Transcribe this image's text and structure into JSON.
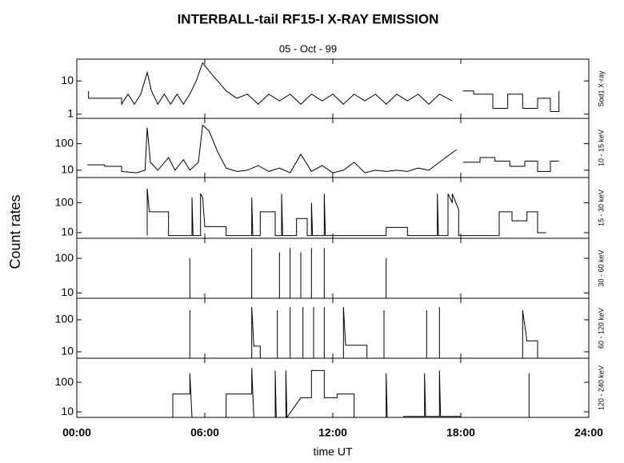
{
  "chart_data": {
    "type": "line",
    "log": true,
    "color": "#000000",
    "title": "INTERBALL-tail  RF15-I   X-RAY  EMISSION",
    "subtitle": "05 - Oct - 99",
    "x_label": "time UT",
    "y_label": "Count  rates",
    "xlim": [
      0,
      24
    ],
    "xticks": [
      {
        "value": 0,
        "label": "00:00"
      },
      {
        "value": 6,
        "label": "06:00"
      },
      {
        "value": 12,
        "label": "12:00"
      },
      {
        "value": 18,
        "label": "18:00"
      },
      {
        "value": 24,
        "label": "24:00"
      }
    ],
    "panels": [
      {
        "label": "Sod1 X-ray",
        "ylim": [
          0.75,
          45
        ],
        "yticks": [
          1,
          10
        ],
        "x": [
          0.55,
          0.55,
          2.1,
          2.1,
          2.4,
          2.7,
          3.0,
          3.3,
          3.5,
          3.8,
          4.1,
          4.4,
          4.7,
          5.0,
          5.3,
          5.6,
          5.9,
          6.2,
          6.6,
          7.0,
          7.5,
          8.0,
          8.5,
          9.0,
          9.5,
          10.0,
          10.5,
          11.0,
          11.5,
          12.0,
          12.5,
          13.0,
          13.5,
          14.0,
          14.5,
          15.0,
          15.5,
          16.0,
          16.5,
          17.0,
          17.6,
          17.8,
          18.1,
          18.6,
          18.6,
          19.5,
          19.5,
          20.2,
          20.2,
          20.9,
          20.9,
          21.6,
          21.6,
          22.2,
          22.2,
          22.6,
          22.6
        ],
        "values": [
          5,
          3,
          3,
          2,
          4,
          2,
          4,
          18,
          5,
          2,
          4,
          2,
          4,
          2,
          4,
          10,
          35,
          20,
          10,
          5,
          3,
          4,
          2,
          4,
          2.5,
          4,
          2,
          4,
          2.5,
          4,
          2,
          4,
          2.5,
          4,
          2,
          4,
          2.5,
          4,
          2,
          4,
          2.5,
          null,
          5,
          5,
          4,
          4,
          1.5,
          1.5,
          4,
          4,
          1.5,
          1.5,
          3,
          3,
          1.2,
          1.2,
          5
        ]
      },
      {
        "label": "10 - 15 keV",
        "ylim": [
          5.3,
          900
        ],
        "yticks": [
          10,
          100
        ],
        "x": [
          0.5,
          1.3,
          1.3,
          2.1,
          2.1,
          2.8,
          3.2,
          3.3,
          3.45,
          3.8,
          4.3,
          4.6,
          5.0,
          5.3,
          5.7,
          5.9,
          6.2,
          6.6,
          7.0,
          7.5,
          8.0,
          8.5,
          9.0,
          9.5,
          10.0,
          10.5,
          11.0,
          11.5,
          12.0,
          12.5,
          13.0,
          13.5,
          14.0,
          14.5,
          15.0,
          15.5,
          16.0,
          16.5,
          17.0,
          17.5,
          17.8,
          17.9,
          18.1,
          18.9,
          18.9,
          19.6,
          19.6,
          20.3,
          20.3,
          21.0,
          21.0,
          21.6,
          21.6,
          22.2,
          22.2,
          22.6
        ],
        "values": [
          16,
          16,
          14,
          14,
          9,
          8,
          10,
          400,
          20,
          10,
          30,
          10,
          25,
          10,
          20,
          500,
          300,
          50,
          12,
          9,
          10,
          15,
          9,
          12,
          8,
          40,
          9,
          15,
          8,
          10,
          20,
          8,
          10,
          9,
          10,
          9,
          12,
          10,
          20,
          40,
          60,
          null,
          20,
          20,
          30,
          30,
          22,
          22,
          14,
          14,
          22,
          22,
          9,
          9,
          22,
          22
        ]
      },
      {
        "label": "15 - 30 keV",
        "ylim": [
          6.5,
          700
        ],
        "yticks": [
          10,
          100
        ],
        "x": [
          3.3,
          3.3,
          3.4,
          4.3,
          4.3,
          5.4,
          5.4,
          5.45,
          5.8,
          5.8,
          5.9,
          6.0,
          7.0,
          7.0,
          8.2,
          8.2,
          8.25,
          8.6,
          8.6,
          9.3,
          9.3,
          9.6,
          9.6,
          9.65,
          10.3,
          10.3,
          10.8,
          10.8,
          11.0,
          11.0,
          11.05,
          11.6,
          11.6,
          11.65,
          14.5,
          14.5,
          15.5,
          15.5,
          16.9,
          16.9,
          16.95,
          17.4,
          17.4,
          17.6,
          17.6,
          17.9,
          17.9,
          19.8,
          19.8,
          20.4,
          20.4,
          21.1,
          21.1,
          21.6,
          21.6,
          22.0
        ],
        "values": [
          8,
          300,
          50,
          50,
          8,
          8,
          150,
          8,
          8,
          200,
          150,
          16,
          16,
          8,
          8,
          150,
          8,
          8,
          50,
          50,
          8,
          8,
          200,
          8,
          8,
          30,
          30,
          8,
          8,
          100,
          8,
          8,
          200,
          8,
          8,
          15,
          15,
          8,
          8,
          200,
          8,
          8,
          200,
          100,
          200,
          60,
          8,
          8,
          50,
          50,
          25,
          25,
          50,
          50,
          10,
          10
        ]
      },
      {
        "label": "30 - 60 keV",
        "ylim": [
          7,
          380
        ],
        "yticks": [
          10,
          100
        ],
        "x": [
          5.3,
          5.3,
          5.3,
          8.2,
          8.2,
          8.2,
          9.5,
          9.5,
          9.5,
          10.0,
          10.0,
          10.0,
          10.5,
          10.5,
          10.5,
          11.0,
          11.0,
          11.0,
          11.6,
          11.6,
          11.6,
          14.5,
          14.5
        ],
        "values": [
          7,
          100,
          null,
          7,
          200,
          null,
          7,
          150,
          null,
          7,
          200,
          null,
          7,
          150,
          null,
          7,
          200,
          null,
          7,
          200,
          null,
          7,
          100
        ]
      },
      {
        "label": "60 - 120 keV",
        "ylim": [
          6.3,
          470
        ],
        "yticks": [
          10,
          100
        ],
        "x": [
          5.3,
          5.3,
          5.3,
          8.2,
          8.2,
          8.3,
          8.6,
          8.6,
          8.6,
          9.4,
          9.4,
          9.4,
          10.0,
          10.0,
          10.0,
          10.6,
          10.6,
          10.6,
          11.1,
          11.1,
          11.1,
          11.6,
          11.6,
          11.6,
          12.5,
          12.5,
          12.6,
          13.6,
          13.6,
          13.6,
          14.4,
          14.4,
          14.4,
          16.4,
          16.4,
          16.4,
          17.0,
          17.0,
          17.0,
          20.9,
          20.9,
          21.1,
          21.6,
          21.6
        ],
        "values": [
          6.3,
          200,
          null,
          6.3,
          250,
          15,
          15,
          6.3,
          null,
          6.3,
          200,
          null,
          6.3,
          250,
          null,
          6.3,
          250,
          null,
          6.3,
          250,
          null,
          6.3,
          250,
          null,
          6.3,
          250,
          16,
          16,
          6.3,
          null,
          6.3,
          200,
          null,
          6.3,
          200,
          null,
          6.3,
          250,
          null,
          6.3,
          200,
          22,
          22,
          6.3
        ]
      },
      {
        "label": "120 - 240 keV",
        "ylim": [
          6.5,
          650
        ],
        "yticks": [
          10,
          100
        ],
        "x": [
          4.5,
          4.5,
          5.3,
          5.3,
          5.4,
          5.4,
          7.0,
          7.0,
          8.2,
          8.2,
          8.3,
          8.3,
          9.3,
          9.3,
          9.35,
          9.35,
          9.8,
          9.8,
          9.85,
          10.5,
          11.0,
          11.0,
          11.6,
          11.6,
          12.2,
          12.2,
          13.0,
          13.0,
          13.0,
          14.5,
          14.5,
          14.55,
          14.55,
          15.3,
          16.3,
          16.3,
          16.35,
          17.0,
          17.0,
          17.05,
          18.0,
          18.0,
          21.2,
          21.2
        ],
        "values": [
          6.5,
          40,
          40,
          200,
          6.5,
          null,
          6.5,
          40,
          40,
          300,
          6.5,
          null,
          6.5,
          250,
          6.5,
          null,
          6.5,
          250,
          6.5,
          30,
          30,
          250,
          250,
          30,
          30,
          40,
          40,
          6.5,
          null,
          6.5,
          200,
          6.5,
          null,
          7,
          7,
          200,
          7,
          7,
          250,
          7,
          7,
          null,
          6.5,
          200
        ]
      }
    ]
  }
}
